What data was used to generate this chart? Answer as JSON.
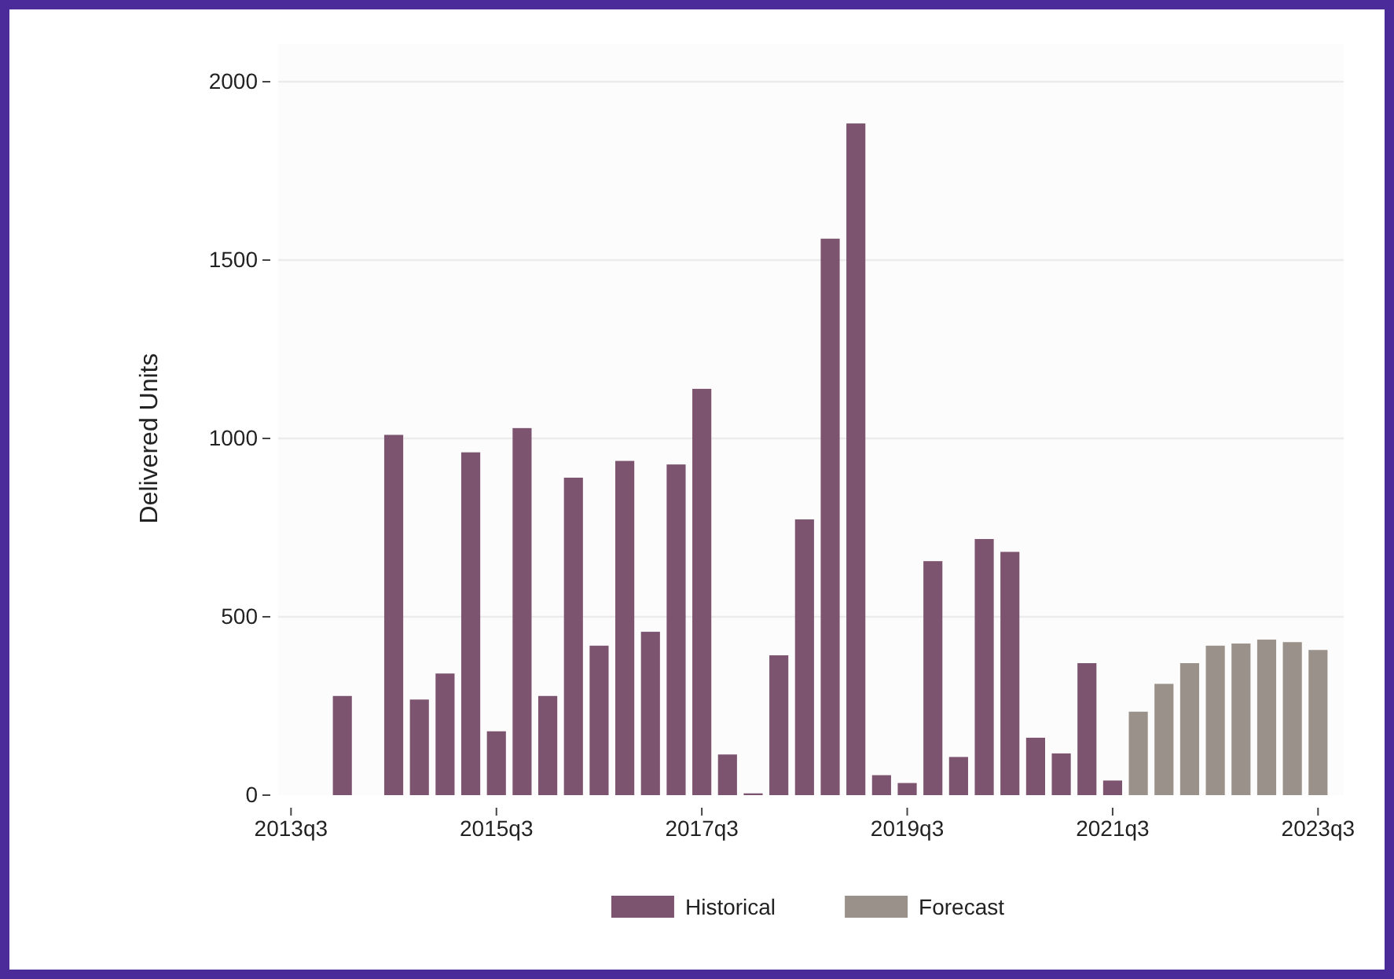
{
  "chart_data": {
    "type": "bar",
    "ylabel": "Delivered Units",
    "stacked": true,
    "categories": [
      "2013q3",
      null,
      null,
      null,
      null,
      null,
      null,
      null,
      "2015q3",
      null,
      null,
      null,
      null,
      null,
      null,
      null,
      "2017q3",
      null,
      null,
      null,
      null,
      null,
      null,
      null,
      "2019q3",
      null,
      null,
      null,
      null,
      null,
      null,
      null,
      "2021q3",
      null,
      null,
      null,
      null,
      null,
      null,
      null,
      "2023q3"
    ],
    "ylim": [
      0,
      2000
    ],
    "yticks": [
      0,
      500,
      1000,
      1500,
      2000
    ],
    "grid": "y",
    "legend": "bottom",
    "series": [
      {
        "name": "Historical",
        "color": "#7d5470",
        "values": [
          null,
          null,
          278,
          null,
          1010,
          268,
          341,
          961,
          179,
          1029,
          278,
          890,
          419,
          937,
          458,
          927,
          1139,
          114,
          5,
          392,
          773,
          1560,
          1883,
          56,
          34,
          656,
          107,
          718,
          682,
          161,
          117,
          370,
          41,
          null,
          null,
          null,
          null,
          null,
          null,
          null,
          null
        ]
      },
      {
        "name": "Forecast",
        "color": "#9a918a",
        "values": [
          null,
          null,
          null,
          null,
          null,
          null,
          null,
          null,
          null,
          null,
          null,
          null,
          null,
          null,
          null,
          null,
          null,
          null,
          null,
          null,
          null,
          null,
          null,
          null,
          null,
          null,
          null,
          null,
          null,
          null,
          null,
          null,
          null,
          234,
          312,
          370,
          419,
          425,
          436,
          429,
          407
        ]
      }
    ]
  }
}
